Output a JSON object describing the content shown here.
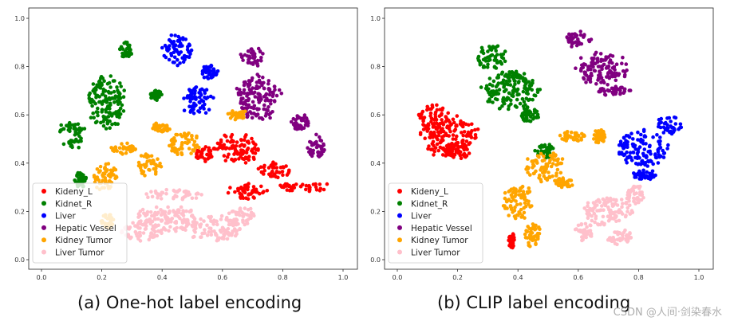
{
  "chart_data": [
    {
      "type": "scatter",
      "title": "",
      "caption": "(a) One-hot label encoding",
      "xlabel": "",
      "ylabel": "",
      "xlim": [
        0,
        1
      ],
      "ylim": [
        0,
        1
      ],
      "xticks": [
        "0.0",
        "0.2",
        "0.4",
        "0.6",
        "0.8",
        "1.0"
      ],
      "yticks": [
        "0.0",
        "0.2",
        "0.4",
        "0.6",
        "0.8",
        "1.0"
      ],
      "legend_position": "bottom-left",
      "series": [
        {
          "name": "Kideny_L",
          "color": "#ff0000",
          "clusters": [
            [
              0.65,
              0.46,
              0.07,
              0.06
            ],
            [
              0.55,
              0.44,
              0.04,
              0.03
            ],
            [
              0.77,
              0.37,
              0.05,
              0.03
            ],
            [
              0.87,
              0.3,
              0.08,
              0.02
            ],
            [
              0.68,
              0.28,
              0.07,
              0.03
            ]
          ]
        },
        {
          "name": "Kidnet_R",
          "color": "#008000",
          "clusters": [
            [
              0.22,
              0.65,
              0.06,
              0.11
            ],
            [
              0.1,
              0.52,
              0.04,
              0.06
            ],
            [
              0.28,
              0.87,
              0.02,
              0.03
            ],
            [
              0.38,
              0.68,
              0.02,
              0.02
            ],
            [
              0.13,
              0.33,
              0.02,
              0.03
            ]
          ]
        },
        {
          "name": "Liver",
          "color": "#0000ff",
          "clusters": [
            [
              0.45,
              0.87,
              0.05,
              0.06
            ],
            [
              0.52,
              0.66,
              0.05,
              0.06
            ],
            [
              0.56,
              0.78,
              0.03,
              0.03
            ]
          ]
        },
        {
          "name": "Hepatic Vessel",
          "color": "#800080",
          "clusters": [
            [
              0.72,
              0.67,
              0.07,
              0.09
            ],
            [
              0.7,
              0.84,
              0.04,
              0.04
            ],
            [
              0.91,
              0.47,
              0.03,
              0.05
            ],
            [
              0.86,
              0.57,
              0.03,
              0.03
            ]
          ]
        },
        {
          "name": "Kidney Tumor",
          "color": "#ffa500",
          "clusters": [
            [
              0.47,
              0.48,
              0.05,
              0.05
            ],
            [
              0.36,
              0.39,
              0.04,
              0.05
            ],
            [
              0.21,
              0.34,
              0.04,
              0.06
            ],
            [
              0.4,
              0.55,
              0.03,
              0.02
            ],
            [
              0.65,
              0.6,
              0.03,
              0.02
            ],
            [
              0.27,
              0.46,
              0.04,
              0.02
            ],
            [
              0.22,
              0.16,
              0.02,
              0.03
            ]
          ]
        },
        {
          "name": "Liver Tumor",
          "color": "#ffc0cb",
          "clusters": [
            [
              0.42,
              0.17,
              0.11,
              0.05
            ],
            [
              0.57,
              0.13,
              0.09,
              0.05
            ],
            [
              0.44,
              0.27,
              0.1,
              0.02
            ],
            [
              0.33,
              0.12,
              0.07,
              0.04
            ],
            [
              0.66,
              0.18,
              0.05,
              0.04
            ]
          ]
        }
      ]
    },
    {
      "type": "scatter",
      "title": "",
      "caption": "(b) CLIP label encoding",
      "xlabel": "",
      "ylabel": "",
      "xlim": [
        0,
        1
      ],
      "ylim": [
        0,
        1
      ],
      "xticks": [
        "0.0",
        "0.2",
        "0.4",
        "0.6",
        "0.8",
        "1.0"
      ],
      "yticks": [
        "0.0",
        "0.2",
        "0.4",
        "0.6",
        "0.8",
        "1.0"
      ],
      "legend_position": "bottom-left",
      "series": [
        {
          "name": "Kideny_L",
          "color": "#ff0000",
          "clusters": [
            [
              0.17,
              0.51,
              0.09,
              0.08
            ],
            [
              0.12,
              0.59,
              0.05,
              0.05
            ],
            [
              0.2,
              0.45,
              0.04,
              0.03
            ],
            [
              0.38,
              0.08,
              0.01,
              0.03
            ]
          ]
        },
        {
          "name": "Kidnet_R",
          "color": "#008000",
          "clusters": [
            [
              0.38,
              0.7,
              0.09,
              0.08
            ],
            [
              0.31,
              0.84,
              0.05,
              0.05
            ],
            [
              0.44,
              0.6,
              0.03,
              0.03
            ],
            [
              0.49,
              0.45,
              0.03,
              0.03
            ]
          ]
        },
        {
          "name": "Liver",
          "color": "#0000ff",
          "clusters": [
            [
              0.81,
              0.46,
              0.08,
              0.07
            ],
            [
              0.9,
              0.56,
              0.04,
              0.04
            ],
            [
              0.82,
              0.35,
              0.04,
              0.02
            ]
          ]
        },
        {
          "name": "Hepatic Vessel",
          "color": "#800080",
          "clusters": [
            [
              0.68,
              0.79,
              0.08,
              0.07
            ],
            [
              0.6,
              0.91,
              0.04,
              0.03
            ],
            [
              0.72,
              0.7,
              0.05,
              0.02
            ]
          ]
        },
        {
          "name": "Kidney Tumor",
          "color": "#ffa500",
          "clusters": [
            [
              0.49,
              0.39,
              0.06,
              0.06
            ],
            [
              0.4,
              0.24,
              0.05,
              0.07
            ],
            [
              0.45,
              0.1,
              0.03,
              0.05
            ],
            [
              0.58,
              0.51,
              0.04,
              0.02
            ],
            [
              0.67,
              0.51,
              0.02,
              0.03
            ],
            [
              0.55,
              0.32,
              0.03,
              0.02
            ]
          ]
        },
        {
          "name": "Liver Tumor",
          "color": "#ffc0cb",
          "clusters": [
            [
              0.7,
              0.2,
              0.08,
              0.06
            ],
            [
              0.79,
              0.27,
              0.03,
              0.04
            ],
            [
              0.74,
              0.09,
              0.04,
              0.03
            ],
            [
              0.62,
              0.12,
              0.03,
              0.04
            ]
          ]
        }
      ]
    }
  ],
  "watermark": "CSDN @人间·剑染春水"
}
